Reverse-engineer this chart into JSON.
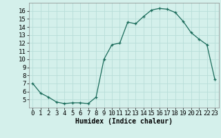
{
  "x": [
    0,
    1,
    2,
    3,
    4,
    5,
    6,
    7,
    8,
    9,
    10,
    11,
    12,
    13,
    14,
    15,
    16,
    17,
    18,
    19,
    20,
    21,
    22,
    23
  ],
  "y": [
    7.0,
    5.8,
    5.3,
    4.7,
    4.5,
    4.6,
    4.6,
    4.5,
    5.3,
    10.0,
    11.8,
    12.0,
    14.6,
    14.4,
    15.3,
    16.1,
    16.3,
    16.2,
    15.8,
    14.7,
    13.3,
    12.5,
    11.8,
    7.5
  ],
  "xlim": [
    -0.5,
    23.5
  ],
  "ylim": [
    4.0,
    17.0
  ],
  "yticks": [
    5,
    6,
    7,
    8,
    9,
    10,
    11,
    12,
    13,
    14,
    15,
    16
  ],
  "xticks": [
    0,
    1,
    2,
    3,
    4,
    5,
    6,
    7,
    8,
    9,
    10,
    11,
    12,
    13,
    14,
    15,
    16,
    17,
    18,
    19,
    20,
    21,
    22,
    23
  ],
  "xlabel": "Humidex (Indice chaleur)",
  "line_color": "#1a6b5a",
  "marker": "+",
  "bg_color": "#d4f0eb",
  "grid_color": "#b8ddd8",
  "xlabel_fontsize": 7,
  "tick_fontsize": 6.5
}
